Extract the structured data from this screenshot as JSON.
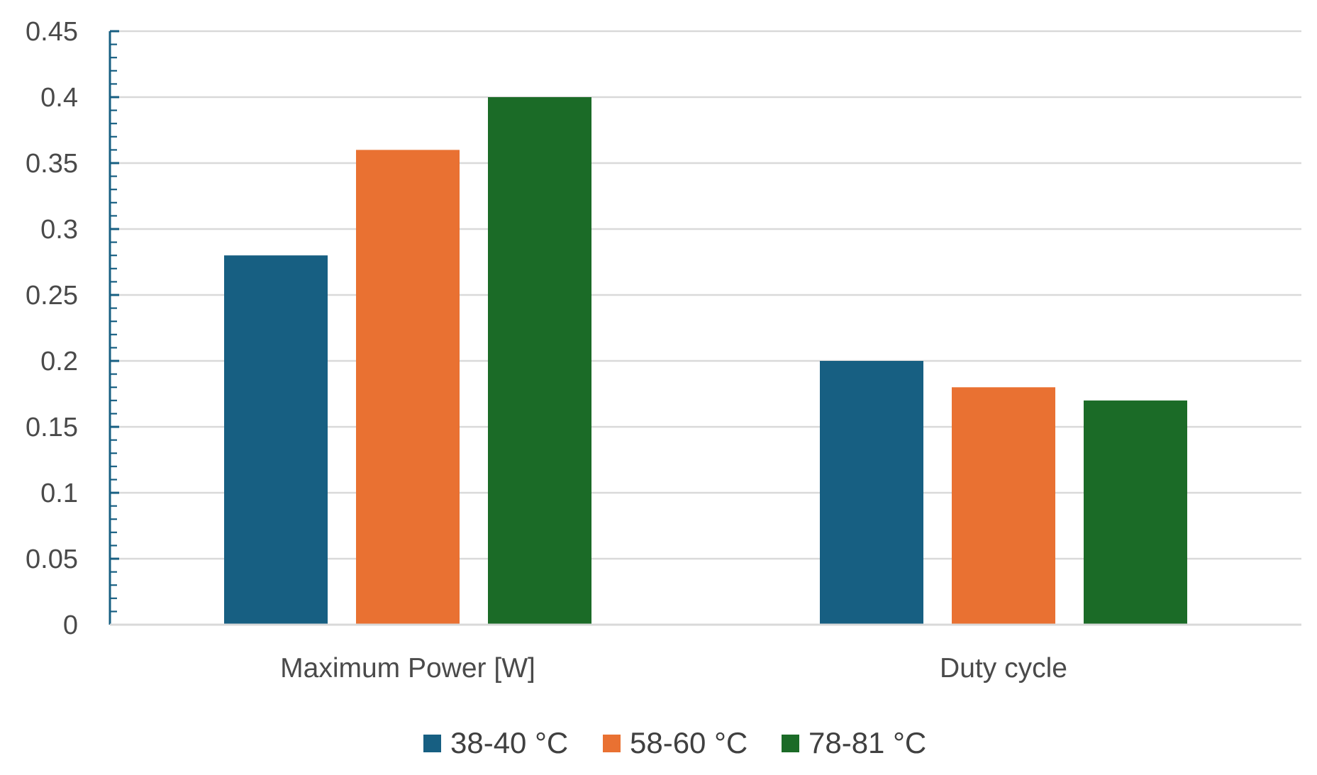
{
  "chart_data": {
    "type": "bar",
    "title": "",
    "xlabel": "",
    "ylabel": "",
    "categories": [
      "Maximum Power [W]",
      "Duty cycle"
    ],
    "series": [
      {
        "name": "38-40 °C",
        "color": "#175f82",
        "values": [
          0.28,
          0.2
        ]
      },
      {
        "name": "58-60 °C",
        "color": "#e97132",
        "values": [
          0.36,
          0.18
        ]
      },
      {
        "name": "78-81 °C",
        "color": "#1b6b27",
        "values": [
          0.4,
          0.17
        ]
      }
    ],
    "ylim": [
      0,
      0.45
    ],
    "yticks": [
      0,
      0.05,
      0.1,
      0.15,
      0.2,
      0.25,
      0.3,
      0.35,
      0.4,
      0.45
    ],
    "ytick_labels": [
      "0",
      "0.05",
      "0.1",
      "0.15",
      "0.2",
      "0.25",
      "0.3",
      "0.35",
      "0.4",
      "0.45"
    ],
    "grid": true,
    "legend_position": "bottom-center",
    "axis_color": "#175f82",
    "grid_color": "#d9d9d9"
  }
}
